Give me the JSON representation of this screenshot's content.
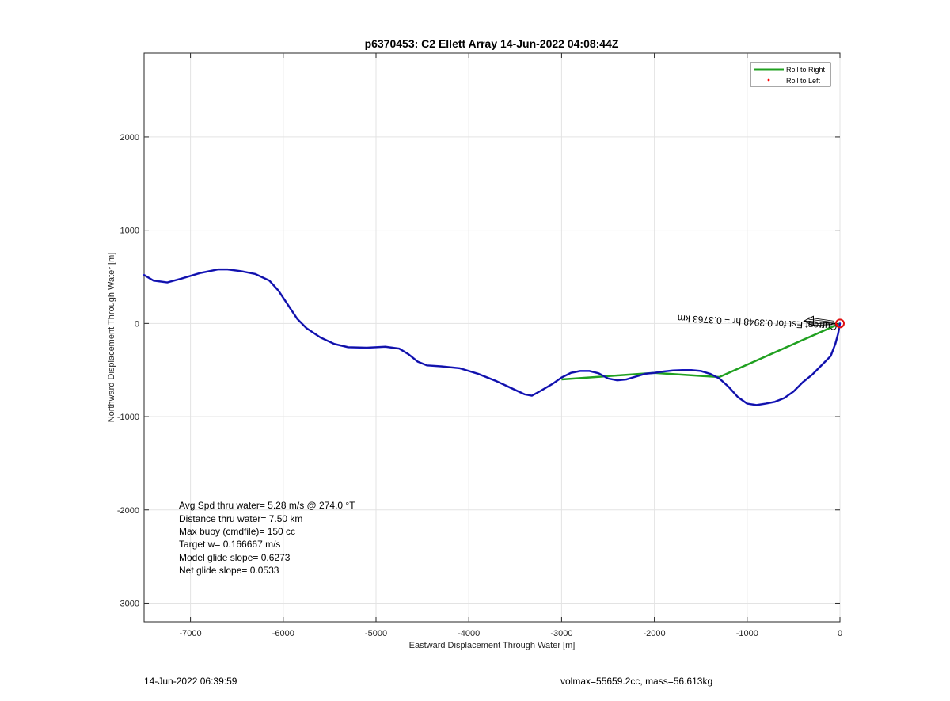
{
  "chart_data": {
    "type": "line",
    "title": "p6370453: C2 Ellett Array 14-Jun-2022 04:08:44Z",
    "xlabel": "Eastward Displacement Through Water [m]",
    "ylabel": "Northward Displacement Through Water [m]",
    "xlim": [
      -7500,
      0
    ],
    "ylim": [
      -3200,
      2900
    ],
    "xticks": [
      -7000,
      -6000,
      -5000,
      -4000,
      -3000,
      -2000,
      -1000,
      0
    ],
    "yticks": [
      -3000,
      -2000,
      -1000,
      0,
      1000,
      2000
    ],
    "xtick_labels": [
      "-7000",
      "-6000",
      "-5000",
      "-4000",
      "-3000",
      "-2000",
      "-1000",
      "0"
    ],
    "ytick_labels": [
      "-3000",
      "-2000",
      "-1000",
      "0",
      "1000",
      "2000"
    ],
    "grid": true,
    "legend_position": "top-right",
    "colors": {
      "track": "#1818c8",
      "roll_right": "#20a020",
      "roll_left": "#ff0000",
      "marker": "#e01010",
      "arrow": "#000000"
    },
    "series": [
      {
        "name": "Track",
        "x": [
          -7500,
          -7400,
          -7250,
          -7100,
          -6900,
          -6700,
          -6600,
          -6450,
          -6300,
          -6150,
          -6050,
          -5950,
          -5850,
          -5750,
          -5600,
          -5450,
          -5300,
          -5100,
          -4900,
          -4750,
          -4650,
          -4550,
          -4450,
          -4300,
          -4100,
          -3900,
          -3700,
          -3550,
          -3400,
          -3320,
          -3220,
          -3100,
          -3000,
          -2900,
          -2800,
          -2700,
          -2600,
          -2500,
          -2400,
          -2300,
          -2200,
          -2100,
          -2000,
          -1900,
          -1800,
          -1700,
          -1600,
          -1500,
          -1400,
          -1300,
          -1200,
          -1100,
          -1000,
          -900,
          -800,
          -700,
          -600,
          -500,
          -400,
          -300,
          -200,
          -100,
          -50,
          -20,
          0
        ],
        "y": [
          520,
          460,
          440,
          480,
          540,
          580,
          580,
          560,
          530,
          460,
          350,
          200,
          50,
          -50,
          -150,
          -220,
          -255,
          -260,
          -250,
          -270,
          -330,
          -410,
          -450,
          -460,
          -480,
          -540,
          -620,
          -690,
          -760,
          -775,
          -720,
          -650,
          -580,
          -530,
          -510,
          -510,
          -535,
          -590,
          -610,
          -600,
          -570,
          -540,
          -530,
          -515,
          -505,
          -500,
          -500,
          -510,
          -540,
          -590,
          -680,
          -790,
          -860,
          -875,
          -860,
          -840,
          -800,
          -730,
          -630,
          -550,
          -450,
          -350,
          -220,
          -110,
          0
        ]
      },
      {
        "name": "Roll to Right",
        "x": [
          -3000,
          -2000,
          -1300,
          0
        ],
        "y": [
          -600,
          -530,
          -575,
          0
        ]
      }
    ],
    "legend": [
      {
        "label": "Roll to Right",
        "style": "line",
        "color": "#20a020"
      },
      {
        "label": "Roll to Left",
        "style": "dot",
        "color": "#ff0000"
      }
    ],
    "annotation": {
      "text": "Current Est for 0.3948 hr = 0.3763 km",
      "anchor_x": -30,
      "anchor_y": 0,
      "rotation_deg": 183
    },
    "end_marker": {
      "x": 0,
      "y": 0
    }
  },
  "stats": [
    "Avg Spd thru water=  5.28 m/s @ 274.0 °T",
    "Distance thru water=  7.50 km",
    "Max buoy (cmdfile)= 150 cc",
    "Target w= 0.166667 m/s",
    "Model glide slope= 0.6273",
    "Net glide slope= 0.0533"
  ],
  "footer": {
    "left": "14-Jun-2022 06:39:59",
    "right": "volmax=55659.2cc, mass=56.613kg"
  }
}
